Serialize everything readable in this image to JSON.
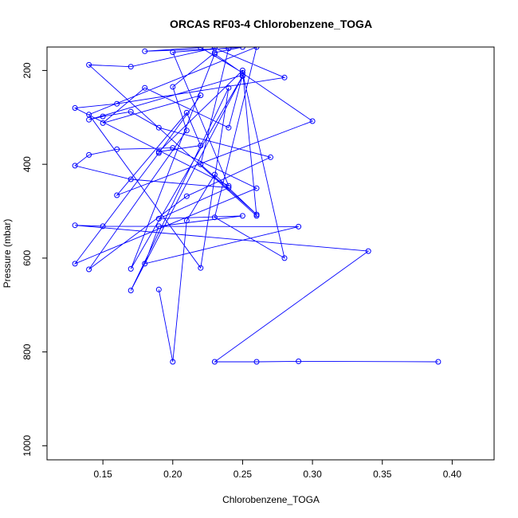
{
  "chart_data": {
    "type": "line",
    "title": "ORCAS RF03-4 Chlorobenzene_TOGA",
    "xlabel": "Chlorobenzene_TOGA",
    "ylabel": "Pressure (mbar)",
    "xlim": [
      0.11,
      0.43
    ],
    "ylim": [
      1030,
      150
    ],
    "y_reversed": true,
    "x_ticks": [
      0.15,
      0.2,
      0.25,
      0.3,
      0.35,
      0.4
    ],
    "x_tick_labels": [
      "0.15",
      "0.20",
      "0.25",
      "0.30",
      "0.35",
      "0.40"
    ],
    "y_ticks": [
      200,
      400,
      600,
      800,
      1000
    ],
    "y_tick_labels": [
      "200",
      "400",
      "600",
      "800",
      "1000"
    ],
    "grid": false,
    "legend": "none",
    "color": "#0000ff",
    "marker": "open-circle",
    "series": [
      {
        "x": [
          0.39,
          0.29,
          0.26,
          0.23,
          0.34,
          0.13,
          0.15,
          0.29,
          0.18,
          0.19,
          0.25,
          0.19,
          0.24,
          0.17,
          0.13,
          0.14,
          0.16,
          0.2,
          0.26,
          0.13,
          0.19,
          0.22,
          0.15,
          0.18,
          0.24,
          0.25,
          0.14,
          0.15,
          0.17,
          0.19,
          0.27,
          0.21,
          0.14,
          0.21,
          0.2,
          0.23,
          0.25,
          0.2,
          0.24,
          0.13,
          0.16,
          0.28,
          0.23,
          0.17,
          0.14,
          0.26,
          0.25,
          0.19,
          0.22,
          0.21,
          0.16,
          0.3,
          0.23,
          0.17,
          0.25,
          0.17,
          0.24,
          0.22,
          0.14,
          0.26,
          0.23,
          0.28,
          0.25,
          0.22,
          0.18,
          0.24,
          0.22,
          0.26,
          0.23,
          0.21,
          0.2,
          0.19
        ],
        "y": [
          821,
          820,
          821,
          821,
          585,
          530,
          532,
          533,
          612,
          532,
          510,
          516,
          450,
          432,
          403,
          380,
          368,
          365,
          451,
          612,
          376,
          253,
          312,
          237,
          322,
          210,
          305,
          298,
          288,
          322,
          385,
          468,
          624,
          328,
          235,
          162,
          150,
          161,
          446,
          280,
          271,
          215,
          152,
          192,
          188,
          510,
          200,
          373,
          360,
          290,
          466,
          308,
          165,
          623,
          212,
          669,
          237,
          621,
          294,
          150,
          513,
          600,
          205,
          151,
          159,
          153,
          400,
          507,
          422,
          520,
          821,
          667
        ]
      }
    ]
  }
}
